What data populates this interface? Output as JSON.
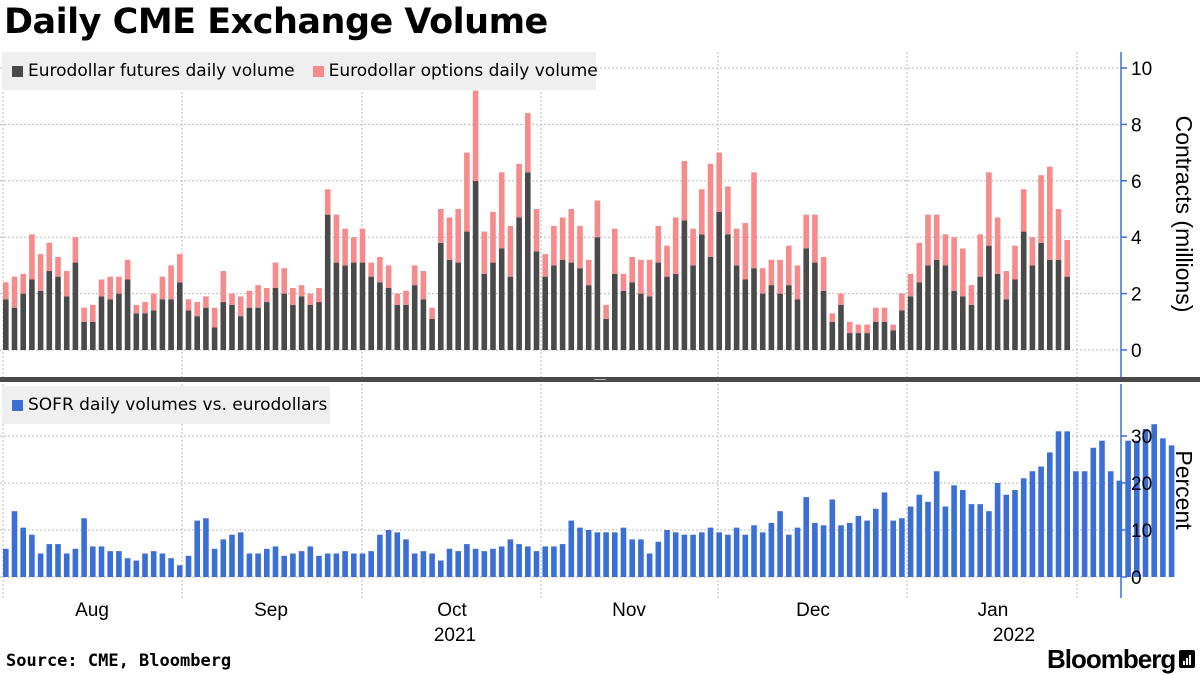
{
  "title": "Daily CME Exchange Volume",
  "source": "Source: CME, Bloomberg",
  "brand": "Bloomberg",
  "colors": {
    "futures": "#4a4a4a",
    "options": "#f78a8a",
    "sofr": "#3b6fd6",
    "grid": "#bbbbbb",
    "axis": "#3b6fd6"
  },
  "chart_data": [
    {
      "type": "bar",
      "stacked": true,
      "ylabel": "Contracts (millions)",
      "ylim": [
        0,
        10
      ],
      "yticks": [
        "0",
        "2",
        "4",
        "6",
        "8",
        "10"
      ],
      "grid": true,
      "legend_position": "top-left",
      "x_tick_labels": [
        "Aug",
        "Sep",
        "Oct",
        "Nov",
        "Dec",
        "Jan"
      ],
      "year_labels": [
        "2021",
        "2022"
      ],
      "series": [
        {
          "name": "Eurodollar futures daily volume",
          "values": [
            1.8,
            1.5,
            2.0,
            2.5,
            2.1,
            2.8,
            2.6,
            1.9,
            3.1,
            1.0,
            1.0,
            1.9,
            1.8,
            2.0,
            2.5,
            1.3,
            1.3,
            1.4,
            1.8,
            1.8,
            2.4,
            1.4,
            1.2,
            1.5,
            0.8,
            1.7,
            1.6,
            1.2,
            1.5,
            1.5,
            1.7,
            2.2,
            2.0,
            1.6,
            1.9,
            1.6,
            1.7,
            4.8,
            3.1,
            3.0,
            3.1,
            3.1,
            2.6,
            2.4,
            2.2,
            1.6,
            1.6,
            2.3,
            1.8,
            1.1,
            3.8,
            3.2,
            3.1,
            4.2,
            6.0,
            2.7,
            3.1,
            3.6,
            2.6,
            4.7,
            6.3,
            3.5,
            2.6,
            3.0,
            3.2,
            3.1,
            2.9,
            2.3,
            4.0,
            1.1,
            2.7,
            2.1,
            2.4,
            2.0,
            1.9,
            3.1,
            2.6,
            2.7,
            4.6,
            3.0,
            4.1,
            3.3,
            4.9,
            4.1,
            3.0,
            2.5,
            2.9,
            2.0,
            2.3,
            2.0,
            2.3,
            1.8,
            3.6,
            3.1,
            2.1,
            1.0,
            1.6,
            0.6,
            0.6,
            0.6,
            1.0,
            1.0,
            0.7,
            1.4,
            1.9,
            2.4,
            3.0,
            3.2,
            3.0,
            2.1,
            1.9,
            1.6,
            2.6,
            3.7,
            2.7,
            1.8,
            2.5,
            4.2,
            3.0,
            3.8,
            3.2,
            3.2,
            2.6
          ]
        },
        {
          "name": "Eurodollar options daily volume",
          "values": [
            0.6,
            1.1,
            0.7,
            1.6,
            1.3,
            1.0,
            0.7,
            0.9,
            0.9,
            0.5,
            0.6,
            0.6,
            0.8,
            0.6,
            0.7,
            0.3,
            0.4,
            0.6,
            0.8,
            1.2,
            1.0,
            0.4,
            0.5,
            0.4,
            0.7,
            1.1,
            0.4,
            0.7,
            0.6,
            0.8,
            0.5,
            0.9,
            0.9,
            0.6,
            0.4,
            0.4,
            0.5,
            0.9,
            1.7,
            1.3,
            0.9,
            1.2,
            0.5,
            0.9,
            0.8,
            0.4,
            0.5,
            0.7,
            1.0,
            0.4,
            1.2,
            1.5,
            1.9,
            2.8,
            3.2,
            1.5,
            1.8,
            2.7,
            1.8,
            1.9,
            2.1,
            1.5,
            0.8,
            1.4,
            1.5,
            1.9,
            1.5,
            0.9,
            1.3,
            0.5,
            1.6,
            0.6,
            0.9,
            1.2,
            1.3,
            1.3,
            1.1,
            2.0,
            2.1,
            1.3,
            1.6,
            3.3,
            2.1,
            1.7,
            1.3,
            2.0,
            3.4,
            0.9,
            0.9,
            1.2,
            1.4,
            1.2,
            1.2,
            1.7,
            1.2,
            0.3,
            0.4,
            0.4,
            0.3,
            0.3,
            0.5,
            0.5,
            0.2,
            0.6,
            0.8,
            1.4,
            1.8,
            1.6,
            1.1,
            1.9,
            1.7,
            0.7,
            1.5,
            2.6,
            2.0,
            1.0,
            1.2,
            1.5,
            1.0,
            2.4,
            3.3,
            1.8,
            1.3
          ]
        }
      ]
    },
    {
      "type": "bar",
      "ylabel": "Percent",
      "ylim": [
        0,
        40
      ],
      "yticks": [
        "0",
        "10",
        "20",
        "30"
      ],
      "grid": true,
      "legend_position": "top-left",
      "x_tick_labels": [
        "Aug",
        "Sep",
        "Oct",
        "Nov",
        "Dec",
        "Jan"
      ],
      "year_labels": [
        "2021",
        "2022"
      ],
      "series": [
        {
          "name": "SOFR daily volumes vs. eurodollars",
          "values": [
            6,
            14,
            10.5,
            9,
            5,
            7,
            7,
            5,
            6,
            12.5,
            6.5,
            6.5,
            5.5,
            5.5,
            4,
            3.5,
            5,
            5.5,
            5,
            4,
            2.5,
            4.5,
            12,
            12.5,
            6,
            8,
            9,
            9.5,
            5,
            5,
            6,
            6.5,
            4.5,
            5,
            5.5,
            6.5,
            4.5,
            5,
            5,
            5.5,
            5,
            5,
            5.5,
            9,
            10,
            9.5,
            8,
            5,
            5.5,
            5,
            3.5,
            6,
            5.5,
            7,
            6,
            5.5,
            6,
            6.5,
            8,
            7,
            6.5,
            5.5,
            6.5,
            6.5,
            7,
            12,
            10.5,
            10,
            9.5,
            9.5,
            9.5,
            10.5,
            8,
            8,
            5,
            7.5,
            10,
            9.5,
            9,
            9,
            9.5,
            10.5,
            9.5,
            9,
            10.5,
            9,
            11,
            9.5,
            11.5,
            14,
            9,
            10.5,
            17,
            11.5,
            11,
            16.5,
            11,
            11.5,
            13,
            12,
            14.5,
            18,
            12,
            12.5,
            15,
            17.5,
            16,
            22.5,
            15,
            19.5,
            18.5,
            15.5,
            15.5,
            14,
            20,
            17.5,
            18.5,
            21,
            22.5,
            23.5,
            26.5,
            31,
            31,
            22.5,
            22.5,
            27.5,
            29,
            22.5,
            20.5,
            29,
            29,
            31.5,
            32.5,
            29.5,
            28
          ]
        }
      ]
    }
  ]
}
